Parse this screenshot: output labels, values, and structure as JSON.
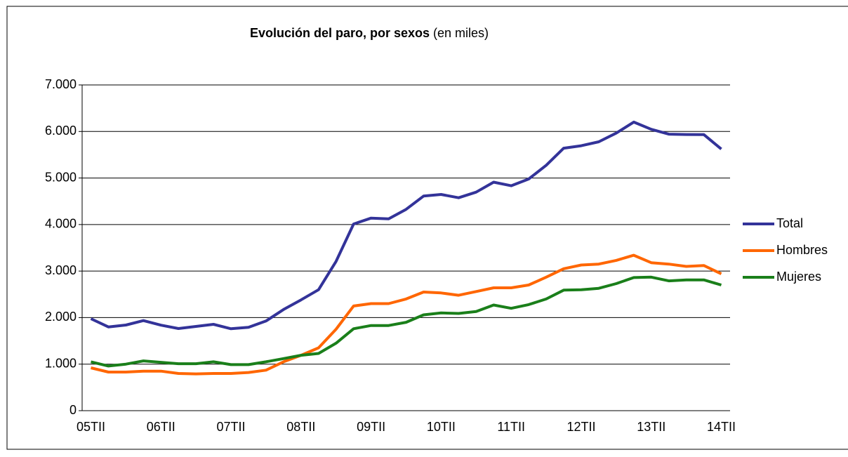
{
  "chart_data": {
    "type": "line",
    "title": "Evolución del paro, por sexos",
    "subtitle": "(en miles)",
    "categories": [
      "05TII",
      null,
      null,
      null,
      "06TII",
      null,
      null,
      null,
      "07TII",
      null,
      null,
      null,
      "08TII",
      null,
      null,
      null,
      "09TII",
      null,
      null,
      null,
      "10TII",
      null,
      null,
      null,
      "11TII",
      null,
      null,
      null,
      "12TII",
      null,
      null,
      null,
      "13TII",
      null,
      null,
      null,
      "14TII"
    ],
    "series": [
      {
        "name": "Total",
        "color": "#333399",
        "values": [
          1977,
          1800,
          1841,
          1935,
          1837,
          1765,
          1810,
          1856,
          1760,
          1791,
          1927,
          2174,
          2381,
          2599,
          3208,
          4011,
          4138,
          4123,
          4327,
          4612,
          4646,
          4575,
          4697,
          4910,
          4834,
          4978,
          5274,
          5640,
          5693,
          5778,
          5965,
          6202,
          6047,
          5943,
          5935,
          5933,
          5622
        ]
      },
      {
        "name": "Hombres",
        "color": "#ff6600",
        "values": [
          920,
          830,
          830,
          850,
          850,
          800,
          790,
          800,
          800,
          820,
          870,
          1050,
          1190,
          1350,
          1750,
          2250,
          2300,
          2300,
          2400,
          2550,
          2530,
          2480,
          2560,
          2640,
          2640,
          2700,
          2870,
          3050,
          3130,
          3150,
          3230,
          3340,
          3180,
          3150,
          3100,
          3120,
          2940
        ]
      },
      {
        "name": "Mujeres",
        "color": "#1a7f1a",
        "values": [
          1050,
          960,
          1000,
          1070,
          1040,
          1010,
          1010,
          1050,
          990,
          990,
          1050,
          1120,
          1190,
          1230,
          1450,
          1760,
          1830,
          1830,
          1900,
          2060,
          2100,
          2090,
          2130,
          2270,
          2200,
          2280,
          2400,
          2590,
          2600,
          2630,
          2730,
          2860,
          2870,
          2790,
          2810,
          2810,
          2700
        ]
      }
    ],
    "ylim": [
      0,
      7000
    ],
    "yticks": [
      0,
      {
        "value": 1000,
        "label": "1.000"
      },
      {
        "value": 2000,
        "label": "2.000"
      },
      {
        "value": 3000,
        "label": "3.000"
      },
      {
        "value": 4000,
        "label": "4.000"
      },
      {
        "value": 5000,
        "label": "5.000"
      },
      {
        "value": 6000,
        "label": "6.000"
      },
      {
        "value": 7000,
        "label": "7.000"
      }
    ],
    "grid": true,
    "legend": "right"
  }
}
